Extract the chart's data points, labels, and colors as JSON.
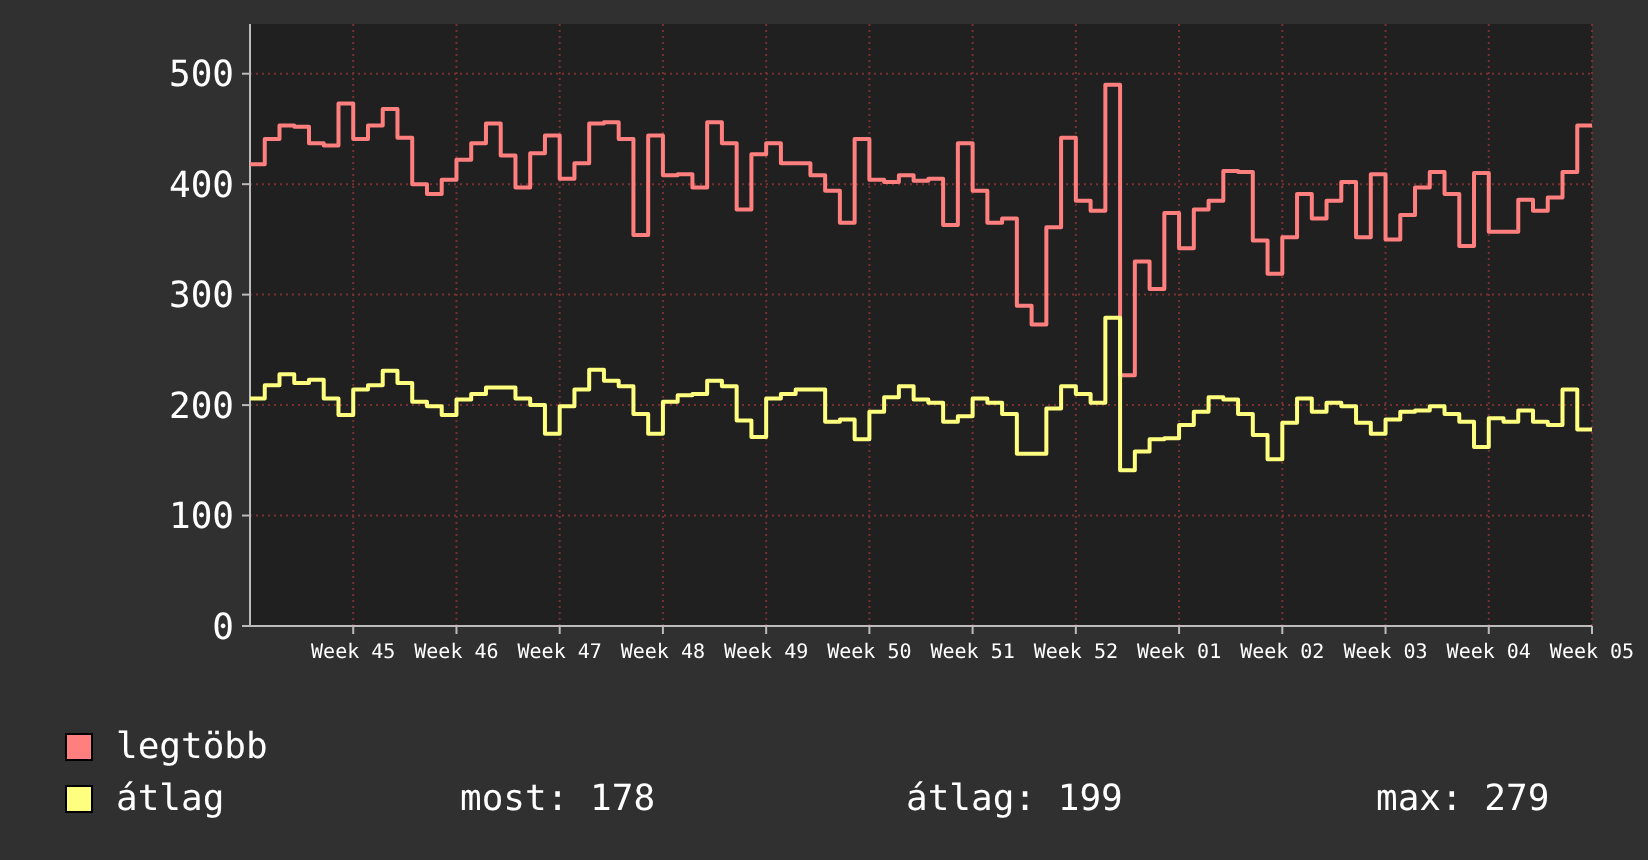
{
  "chart_data": {
    "type": "step",
    "categories": [
      null,
      null,
      null,
      null,
      null,
      null,
      null,
      "Week 45",
      null,
      null,
      null,
      null,
      null,
      null,
      "Week 46",
      null,
      null,
      null,
      null,
      null,
      null,
      "Week 47",
      null,
      null,
      null,
      null,
      null,
      null,
      "Week 48",
      null,
      null,
      null,
      null,
      null,
      null,
      "Week 49",
      null,
      null,
      null,
      null,
      null,
      null,
      "Week 50",
      null,
      null,
      null,
      null,
      null,
      null,
      "Week 51",
      null,
      null,
      null,
      null,
      null,
      null,
      "Week 52",
      null,
      null,
      null,
      null,
      null,
      null,
      "Week 01",
      null,
      null,
      null,
      null,
      null,
      null,
      "Week 02",
      null,
      null,
      null,
      null,
      null,
      null,
      "Week 03",
      null,
      null,
      null,
      null,
      null,
      null,
      "Week 04",
      null,
      null,
      null,
      null,
      null,
      null,
      "Week 05"
    ],
    "ylim": [
      0,
      545
    ],
    "yticks": [
      0,
      100,
      200,
      300,
      400,
      500
    ],
    "grid": true,
    "legend": "bottom left",
    "series": [
      {
        "name": "legtöbb",
        "color": "#ff7f7f",
        "values": [
          418,
          441,
          453,
          452,
          437,
          435,
          473,
          441,
          453,
          468,
          442,
          400,
          391,
          404,
          422,
          437,
          455,
          426,
          397,
          428,
          444,
          405,
          419,
          455,
          456,
          441,
          354,
          444,
          408,
          409,
          397,
          456,
          437,
          377,
          427,
          437,
          419,
          419,
          408,
          394,
          365,
          441,
          404,
          402,
          408,
          403,
          405,
          363,
          437,
          394,
          365,
          369,
          290,
          273,
          361,
          442,
          385,
          376,
          490,
          227,
          330,
          305,
          374,
          342,
          377,
          385,
          412,
          411,
          349,
          319,
          352,
          391,
          369,
          385,
          402,
          352,
          409,
          350,
          372,
          397,
          411,
          391,
          344,
          410,
          357,
          357,
          386,
          376,
          388,
          411,
          453,
          453
        ]
      },
      {
        "name": "átlag",
        "color": "#ffff7f",
        "values": [
          206,
          218,
          228,
          220,
          223,
          206,
          191,
          214,
          218,
          231,
          220,
          203,
          199,
          191,
          205,
          210,
          216,
          216,
          206,
          200,
          174,
          199,
          214,
          232,
          222,
          217,
          192,
          174,
          203,
          209,
          210,
          222,
          217,
          186,
          171,
          206,
          210,
          214,
          214,
          185,
          187,
          169,
          194,
          207,
          217,
          205,
          202,
          185,
          190,
          206,
          202,
          192,
          156,
          156,
          197,
          217,
          210,
          202,
          279,
          141,
          158,
          169,
          170,
          182,
          194,
          207,
          205,
          192,
          173,
          151,
          184,
          206,
          194,
          202,
          199,
          184,
          174,
          187,
          194,
          195,
          199,
          192,
          185,
          162,
          188,
          185,
          195,
          185,
          182,
          214,
          178,
          178
        ]
      }
    ],
    "annotations": [
      "most: 178",
      "átlag: 199",
      "max: 279"
    ]
  }
}
